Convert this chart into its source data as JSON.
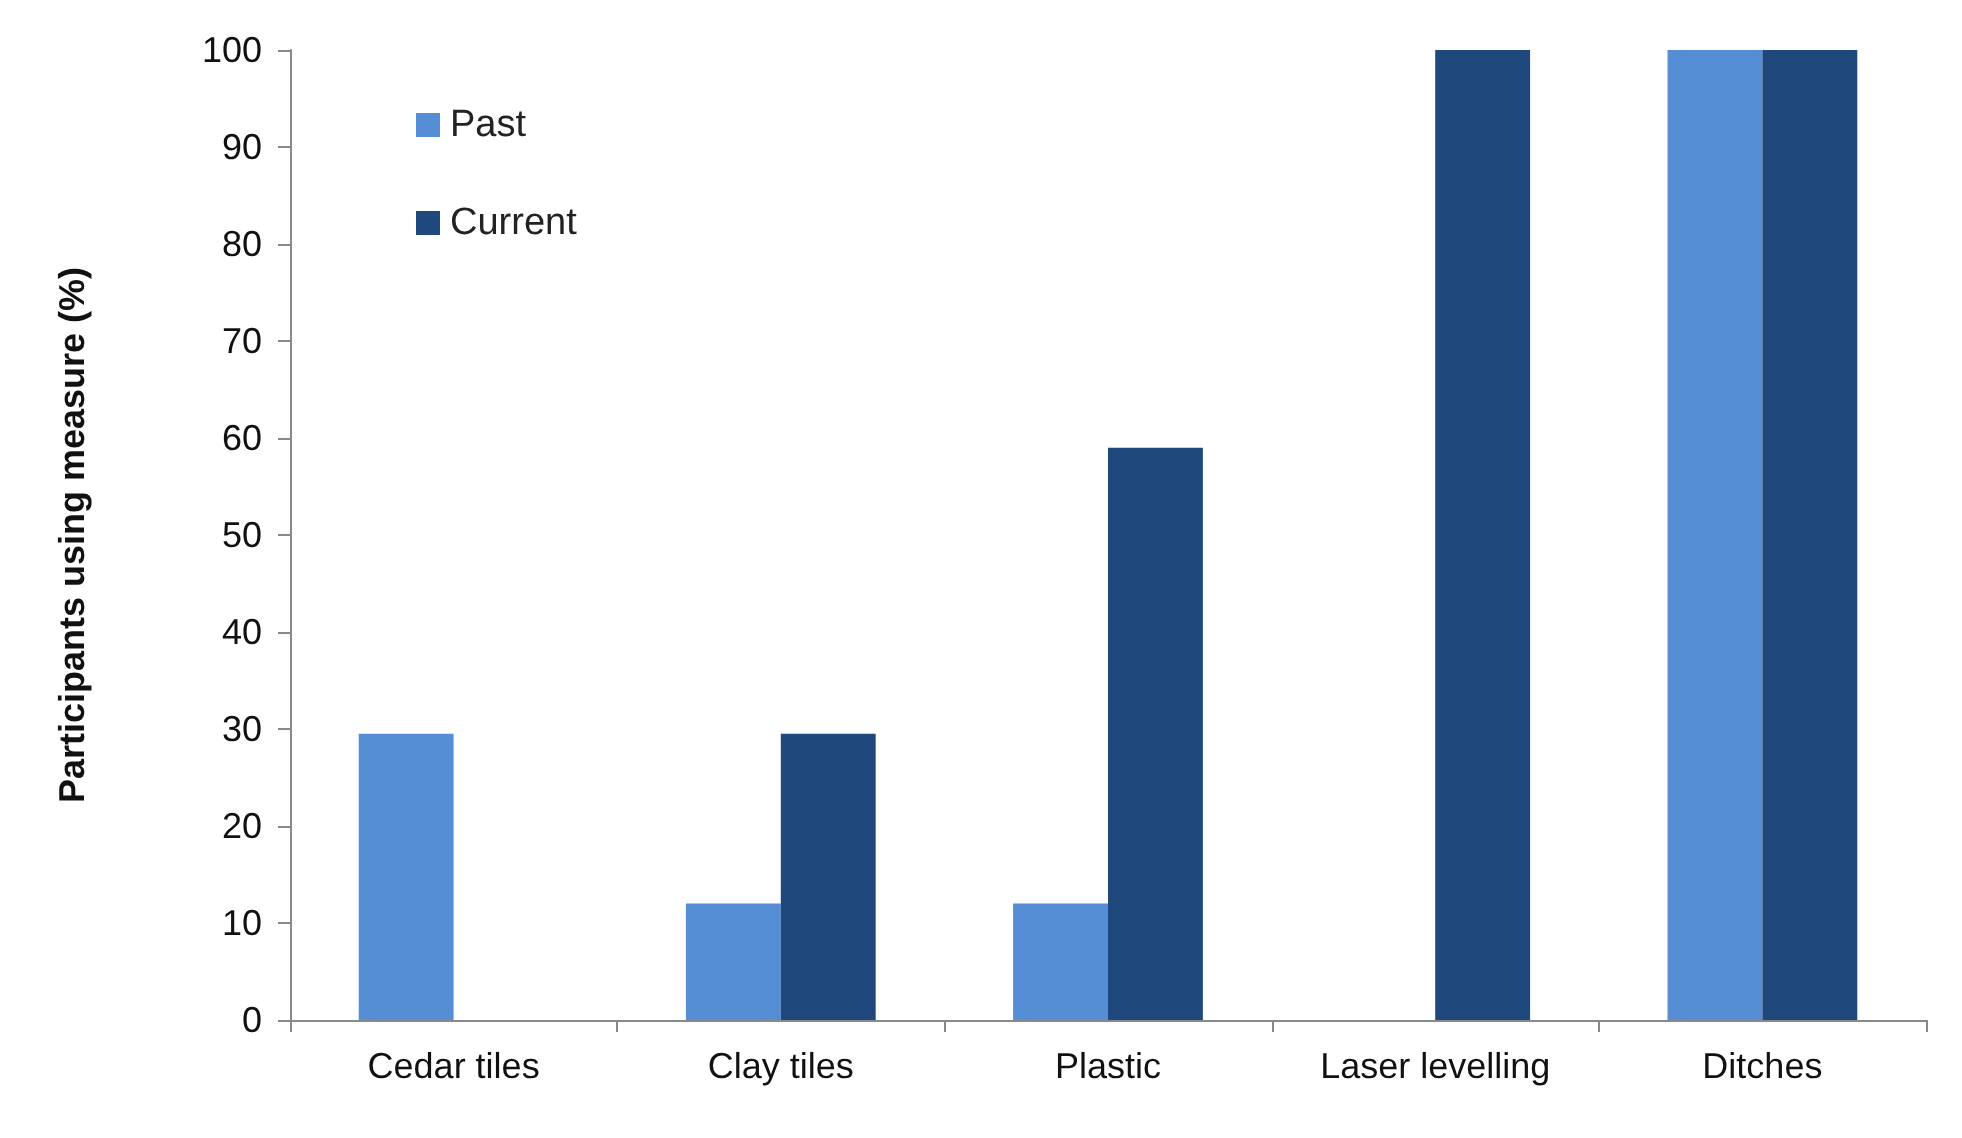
{
  "chart_data": {
    "type": "bar",
    "ylabel": "Participants using measure (%)",
    "categories": [
      "Cedar tiles",
      "Clay tiles",
      "Plastic",
      "Laser levelling",
      "Ditches"
    ],
    "series": [
      {
        "name": "Past",
        "color": "#558ed5",
        "values": [
          29.5,
          12,
          12,
          0,
          100
        ]
      },
      {
        "name": "Current",
        "color": "#1f497d",
        "values": [
          0,
          29.5,
          59,
          100,
          100
        ]
      }
    ],
    "ylim": [
      0,
      100
    ],
    "yticks": [
      0,
      10,
      20,
      30,
      40,
      50,
      60,
      70,
      80,
      90,
      100
    ],
    "grid": false,
    "legend": "top left"
  }
}
